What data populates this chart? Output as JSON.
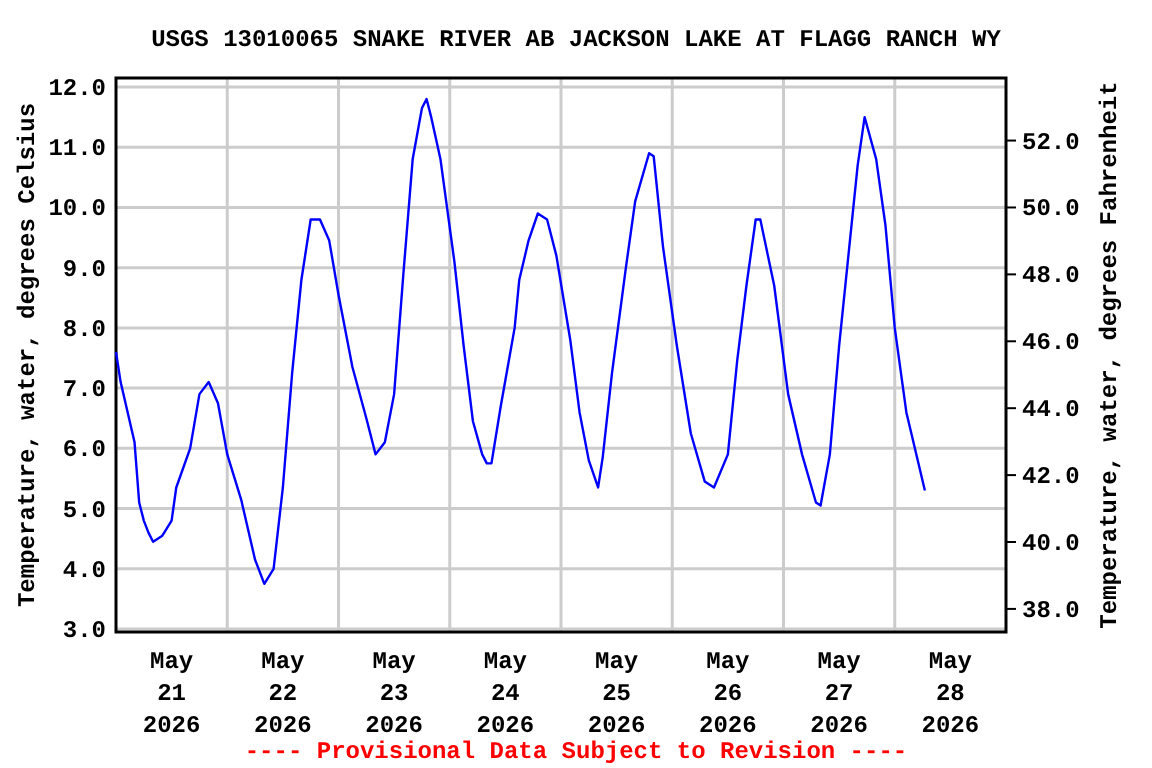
{
  "chart_data": {
    "type": "line",
    "title": "USGS 13010065 SNAKE RIVER AB JACKSON LAKE AT FLAGG RANCH WY",
    "ylabel": "Temperature, water, degrees Celsius",
    "y2label": "Temperature, water, degrees Fahrenheit",
    "annotations": [
      "---- Provisional Data Subject to Revision ----"
    ],
    "x": [
      "2026-05-21T00:00",
      "2026-05-21T01:00",
      "2026-05-21T04:00",
      "2026-05-21T05:00",
      "2026-05-21T06:00",
      "2026-05-21T07:00",
      "2026-05-21T08:00",
      "2026-05-21T10:00",
      "2026-05-21T12:00",
      "2026-05-21T13:00",
      "2026-05-21T16:00",
      "2026-05-21T18:00",
      "2026-05-21T20:00",
      "2026-05-21T22:00",
      "2026-05-22T00:00",
      "2026-05-22T03:00",
      "2026-05-22T06:00",
      "2026-05-22T08:00",
      "2026-05-22T10:00",
      "2026-05-22T12:00",
      "2026-05-22T14:00",
      "2026-05-22T16:00",
      "2026-05-22T18:00",
      "2026-05-22T20:00",
      "2026-05-22T22:00",
      "2026-05-23T00:00",
      "2026-05-23T03:00",
      "2026-05-23T06:00",
      "2026-05-23T08:00",
      "2026-05-23T10:00",
      "2026-05-23T12:00",
      "2026-05-23T14:00",
      "2026-05-23T16:00",
      "2026-05-23T18:00",
      "2026-05-23T19:00",
      "2026-05-23T20:00",
      "2026-05-23T22:00",
      "2026-05-24T01:00",
      "2026-05-24T03:00",
      "2026-05-24T05:00",
      "2026-05-24T07:00",
      "2026-05-24T08:00",
      "2026-05-24T09:00",
      "2026-05-24T11:00",
      "2026-05-24T14:00",
      "2026-05-24T15:00",
      "2026-05-24T17:00",
      "2026-05-24T19:00",
      "2026-05-24T21:00",
      "2026-05-24T23:00",
      "2026-05-25T02:00",
      "2026-05-25T04:00",
      "2026-05-25T06:00",
      "2026-05-25T08:00",
      "2026-05-25T09:00",
      "2026-05-25T11:00",
      "2026-05-25T14:00",
      "2026-05-25T16:00",
      "2026-05-25T19:00",
      "2026-05-25T20:00",
      "2026-05-25T22:00",
      "2026-05-26T01:00",
      "2026-05-26T04:00",
      "2026-05-26T07:00",
      "2026-05-26T09:00",
      "2026-05-26T12:00",
      "2026-05-26T14:00",
      "2026-05-26T16:00",
      "2026-05-26T18:00",
      "2026-05-26T19:00",
      "2026-05-26T22:00",
      "2026-05-27T01:00",
      "2026-05-27T04:00",
      "2026-05-27T07:00",
      "2026-05-27T08:00",
      "2026-05-27T10:00",
      "2026-05-27T12:00",
      "2026-05-27T14:00",
      "2026-05-27T16:00",
      "2026-05-27T17:30",
      "2026-05-27T20:00",
      "2026-05-27T22:00",
      "2026-05-28T00:00",
      "2026-05-28T02:30",
      "2026-05-28T06:30"
    ],
    "series": [
      {
        "color": "#0000ff",
        "values": [
          7.6,
          7.1,
          6.1,
          5.1,
          4.8,
          4.6,
          4.45,
          4.55,
          4.8,
          5.35,
          6.0,
          6.9,
          7.1,
          6.75,
          5.9,
          5.15,
          4.15,
          3.75,
          4.0,
          5.35,
          7.25,
          8.8,
          9.8,
          9.8,
          9.45,
          8.55,
          7.35,
          6.5,
          5.9,
          6.1,
          6.9,
          8.9,
          10.8,
          11.65,
          11.8,
          11.5,
          10.8,
          9.1,
          7.7,
          6.45,
          5.9,
          5.75,
          5.75,
          6.7,
          8.0,
          8.8,
          9.45,
          9.9,
          9.8,
          9.2,
          7.8,
          6.6,
          5.8,
          5.35,
          5.85,
          7.25,
          9.0,
          10.1,
          10.9,
          10.85,
          9.35,
          7.7,
          6.25,
          5.45,
          5.35,
          5.9,
          7.45,
          8.7,
          9.8,
          9.8,
          8.7,
          6.9,
          5.9,
          5.1,
          5.05,
          5.9,
          7.7,
          9.2,
          10.7,
          11.5,
          10.8,
          9.7,
          8.0,
          6.6,
          5.3
        ]
      }
    ],
    "xlim": [
      "2026-05-21T00:00",
      "2026-05-29T00:00"
    ],
    "xticks": [
      {
        "value": "2026-05-21T12:00",
        "label": "May\n21\n2026"
      },
      {
        "value": "2026-05-22T00:00",
        "label": null
      },
      {
        "value": "2026-05-22T12:00",
        "label": "May\n22\n2026"
      },
      {
        "value": "2026-05-23T00:00",
        "label": null
      },
      {
        "value": "2026-05-23T12:00",
        "label": "May\n23\n2026"
      },
      {
        "value": "2026-05-24T00:00",
        "label": null
      },
      {
        "value": "2026-05-24T12:00",
        "label": "May\n24\n2026"
      },
      {
        "value": "2026-05-25T00:00",
        "label": null
      },
      {
        "value": "2026-05-25T12:00",
        "label": "May\n25\n2026"
      },
      {
        "value": "2026-05-26T00:00",
        "label": null
      },
      {
        "value": "2026-05-26T12:00",
        "label": "May\n26\n2026"
      },
      {
        "value": "2026-05-27T00:00",
        "label": null
      },
      {
        "value": "2026-05-27T12:00",
        "label": "May\n27\n2026"
      },
      {
        "value": "2026-05-28T00:00",
        "label": null
      },
      {
        "value": "2026-05-28T12:00",
        "label": "May\n28\n2026"
      }
    ],
    "ylim": [
      2.95,
      12.15
    ],
    "yticks": [
      {
        "value": 3,
        "label": "3.0"
      },
      {
        "value": 4,
        "label": "4.0"
      },
      {
        "value": 5,
        "label": "5.0"
      },
      {
        "value": 6,
        "label": "6.0"
      },
      {
        "value": 7,
        "label": "7.0"
      },
      {
        "value": 8,
        "label": "8.0"
      },
      {
        "value": 9,
        "label": "9.0"
      },
      {
        "value": 10,
        "label": "10.0"
      },
      {
        "value": 11,
        "label": "11.0"
      },
      {
        "value": 12,
        "label": "12.0"
      }
    ],
    "y2lim": [
      37.31,
      53.87
    ],
    "y2ticks": [
      {
        "value": 38,
        "label": "38.0"
      },
      {
        "value": 40,
        "label": "40.0"
      },
      {
        "value": 42,
        "label": "42.0"
      },
      {
        "value": 44,
        "label": "44.0"
      },
      {
        "value": 46,
        "label": "46.0"
      },
      {
        "value": 48,
        "label": "48.0"
      },
      {
        "value": 50,
        "label": "50.0"
      },
      {
        "value": 52,
        "label": "52.0"
      }
    ],
    "grid": true,
    "line_style": "solid"
  }
}
